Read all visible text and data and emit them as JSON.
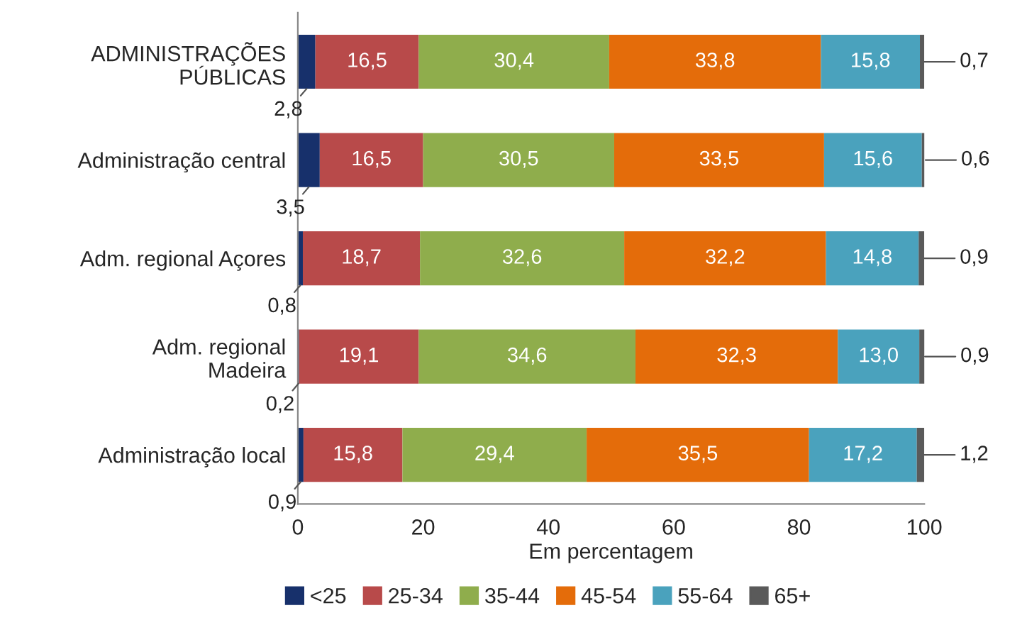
{
  "chart_data": {
    "type": "bar",
    "orientation": "horizontal",
    "stacked": true,
    "categories": [
      "ADMINISTRAÇÕES\nPÚBLICAS",
      "Administração central",
      "Adm. regional Açores",
      "Adm. regional\nMadeira",
      "Administração local"
    ],
    "series": [
      {
        "name": "<25",
        "color": "#17306b",
        "values": [
          2.8,
          3.5,
          0.8,
          0.2,
          0.9
        ],
        "value_labels": [
          "2,8",
          "3,5",
          "0,8",
          "0,2",
          "0,9"
        ]
      },
      {
        "name": "25-34",
        "color": "#b84a4a",
        "values": [
          16.5,
          16.5,
          18.7,
          19.1,
          15.8
        ],
        "value_labels": [
          "16,5",
          "16,5",
          "18,7",
          "19,1",
          "15,8"
        ]
      },
      {
        "name": "35-44",
        "color": "#8fad4c",
        "values": [
          30.4,
          30.5,
          32.6,
          34.6,
          29.4
        ],
        "value_labels": [
          "30,4",
          "30,5",
          "32,6",
          "34,6",
          "29,4"
        ]
      },
      {
        "name": "45-54",
        "color": "#e46c0a",
        "values": [
          33.8,
          33.5,
          32.2,
          32.3,
          35.5
        ],
        "value_labels": [
          "33,8",
          "33,5",
          "32,2",
          "32,3",
          "35,5"
        ]
      },
      {
        "name": "55-64",
        "color": "#4aa2bd",
        "values": [
          15.8,
          15.6,
          14.8,
          13.0,
          17.2
        ],
        "value_labels": [
          "15,8",
          "15,6",
          "14,8",
          "13,0",
          "17,2"
        ]
      },
      {
        "name": "65+",
        "color": "#5a5a5a",
        "values": [
          0.7,
          0.6,
          0.9,
          0.9,
          1.2
        ],
        "value_labels": [
          "0,7",
          "0,6",
          "0,9",
          "0,9",
          "1,2"
        ]
      }
    ],
    "xlim": [
      0,
      100
    ],
    "xticks": [
      0,
      20,
      40,
      60,
      80,
      100
    ],
    "xlabel": "Em percentagem",
    "grid": false,
    "legend": "bottom"
  }
}
